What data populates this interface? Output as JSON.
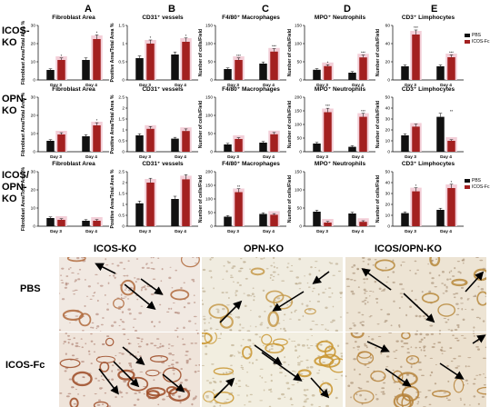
{
  "column_letters": [
    "A",
    "B",
    "C",
    "D",
    "E"
  ],
  "row_labels": [
    [
      "ICOS-",
      "KO"
    ],
    [
      "OPN-",
      "KO"
    ],
    [
      "ICOS/",
      "OPN-",
      "KO"
    ]
  ],
  "legend": [
    {
      "name": "PBS",
      "color": "#111111"
    },
    {
      "name": "ICOS-Fc",
      "color": "#a32020"
    }
  ],
  "micrographs": {
    "columns": [
      "ICOS-KO",
      "OPN-KO",
      "ICOS/OPN-KO"
    ],
    "rows": [
      "PBS",
      "ICOS-Fc"
    ]
  },
  "chart_data": [
    {
      "type": "bar",
      "title": "Fibroblast Area",
      "ylabel": "Fibroblast Area/Total Area %",
      "ylim": [
        0,
        30
      ],
      "yticks": [
        0,
        10,
        20,
        30
      ],
      "categories": [
        "Day 3",
        "Day 4"
      ],
      "series": [
        {
          "name": "PBS",
          "values": [
            5.5,
            11
          ]
        },
        {
          "name": "ICOS-Fc",
          "values": [
            11,
            22.5
          ]
        }
      ],
      "significance": [
        "*",
        "*"
      ]
    },
    {
      "type": "bar",
      "title": "CD31⁺ vessels",
      "ylabel": "Positive Area/Total Area %",
      "ylim": [
        0,
        1.5
      ],
      "yticks": [
        0.0,
        0.5,
        1.0,
        1.5
      ],
      "categories": [
        "Day 3",
        "Day 4"
      ],
      "series": [
        {
          "name": "PBS",
          "values": [
            0.6,
            0.7
          ]
        },
        {
          "name": "ICOS-Fc",
          "values": [
            1.0,
            1.05
          ]
        }
      ],
      "significance": [
        "*",
        "*"
      ]
    },
    {
      "type": "bar",
      "title": "F4/80⁺ Macrophages",
      "ylabel": "Number of cells/Field",
      "ylim": [
        0,
        150
      ],
      "yticks": [
        0,
        50,
        100,
        150
      ],
      "categories": [
        "Day 3",
        "Day 4"
      ],
      "series": [
        {
          "name": "PBS",
          "values": [
            30,
            45
          ]
        },
        {
          "name": "ICOS-Fc",
          "values": [
            55,
            78
          ]
        }
      ],
      "significance": [
        "***",
        "***"
      ]
    },
    {
      "type": "bar",
      "title": "MPO⁺ Neutrophils",
      "ylabel": "Number of cells/Field",
      "ylim": [
        0,
        150
      ],
      "yticks": [
        0,
        50,
        100,
        150
      ],
      "categories": [
        "Day 3",
        "Day 4"
      ],
      "series": [
        {
          "name": "PBS",
          "values": [
            28,
            20
          ]
        },
        {
          "name": "ICOS-Fc",
          "values": [
            38,
            62
          ]
        }
      ],
      "significance": [
        "*",
        "***"
      ]
    },
    {
      "type": "bar",
      "title": "CD3⁺ Limphocytes",
      "ylabel": "Number of cells/Field",
      "ylim": [
        0,
        60
      ],
      "yticks": [
        0,
        20,
        40,
        60
      ],
      "categories": [
        "Day 3",
        "Day 4"
      ],
      "series": [
        {
          "name": "PBS",
          "values": [
            15,
            15
          ]
        },
        {
          "name": "ICOS-Fc",
          "values": [
            50,
            25
          ]
        }
      ],
      "significance": [
        "***",
        "***"
      ]
    },
    {
      "type": "bar",
      "title": "Fibroblast Area",
      "ylabel": "Fibroblast Area/Total Area %",
      "ylim": [
        0,
        30
      ],
      "yticks": [
        0,
        10,
        20,
        30
      ],
      "categories": [
        "Day 3",
        "Day 4"
      ],
      "series": [
        {
          "name": "PBS",
          "values": [
            6,
            8.5
          ]
        },
        {
          "name": "ICOS-Fc",
          "values": [
            9.5,
            14.5
          ]
        }
      ],
      "significance": [
        "",
        "*"
      ]
    },
    {
      "type": "bar",
      "title": "CD31⁺ vessels",
      "ylabel": "Positive Area/Total Area %",
      "ylim": [
        0,
        2.5
      ],
      "yticks": [
        0.0,
        0.5,
        1.0,
        1.5,
        2.0,
        2.5
      ],
      "categories": [
        "Day 3",
        "Day 4"
      ],
      "series": [
        {
          "name": "PBS",
          "values": [
            0.75,
            0.6
          ]
        },
        {
          "name": "ICOS-Fc",
          "values": [
            1.05,
            0.95
          ]
        }
      ],
      "significance": [
        "",
        ""
      ]
    },
    {
      "type": "bar",
      "title": "F4/80⁺ Macrophages",
      "ylabel": "Number of cells/Field",
      "ylim": [
        0,
        150
      ],
      "yticks": [
        0,
        50,
        100,
        150
      ],
      "categories": [
        "Day 3",
        "Day 4"
      ],
      "series": [
        {
          "name": "PBS",
          "values": [
            20,
            25
          ]
        },
        {
          "name": "ICOS-Fc",
          "values": [
            35,
            48
          ]
        }
      ],
      "significance": [
        "",
        ""
      ]
    },
    {
      "type": "bar",
      "title": "MPO⁺ Neutrophils",
      "ylabel": "Number of cells/Field",
      "ylim": [
        0,
        200
      ],
      "yticks": [
        0,
        50,
        100,
        150,
        200
      ],
      "categories": [
        "Day 3",
        "Day 4"
      ],
      "series": [
        {
          "name": "PBS",
          "values": [
            30,
            18
          ]
        },
        {
          "name": "ICOS-Fc",
          "values": [
            145,
            128
          ]
        }
      ],
      "significance": [
        "***",
        "***"
      ]
    },
    {
      "type": "bar",
      "title": "CD3⁺ Limphocytes",
      "ylabel": "Number of cells/Field",
      "ylim": [
        0,
        50
      ],
      "yticks": [
        0,
        10,
        20,
        30,
        40,
        50
      ],
      "categories": [
        "Day 3",
        "Day 4"
      ],
      "series": [
        {
          "name": "PBS",
          "values": [
            15,
            32
          ]
        },
        {
          "name": "ICOS-Fc",
          "values": [
            23,
            10
          ]
        }
      ],
      "significance": [
        "",
        "**"
      ]
    },
    {
      "type": "bar",
      "title": "Fibroblast Area",
      "ylabel": "Fibroblast Area/Total Area %",
      "ylim": [
        0,
        30
      ],
      "yticks": [
        0,
        10,
        20,
        30
      ],
      "categories": [
        "Day 3",
        "Day 4"
      ],
      "series": [
        {
          "name": "PBS",
          "values": [
            4.5,
            3
          ]
        },
        {
          "name": "ICOS-Fc",
          "values": [
            3.5,
            3
          ]
        }
      ],
      "significance": [
        "",
        ""
      ]
    },
    {
      "type": "bar",
      "title": "CD31⁺ vessels",
      "ylabel": "Positive Area/Total Area %",
      "ylim": [
        0,
        2.5
      ],
      "yticks": [
        0.0,
        0.5,
        1.0,
        1.5,
        2.0,
        2.5
      ],
      "categories": [
        "Day 3",
        "Day 4"
      ],
      "series": [
        {
          "name": "PBS",
          "values": [
            1.05,
            1.25
          ]
        },
        {
          "name": "ICOS-Fc",
          "values": [
            2.0,
            2.15
          ]
        }
      ],
      "significance": [
        "",
        ""
      ]
    },
    {
      "type": "bar",
      "title": "F4/80⁺ Macrophages",
      "ylabel": "Number of cells/Field",
      "ylim": [
        0,
        200
      ],
      "yticks": [
        0,
        50,
        100,
        150,
        200
      ],
      "categories": [
        "Day 3",
        "Day 4"
      ],
      "series": [
        {
          "name": "PBS",
          "values": [
            35,
            45
          ]
        },
        {
          "name": "ICOS-Fc",
          "values": [
            125,
            42
          ]
        }
      ],
      "significance": [
        "**",
        ""
      ]
    },
    {
      "type": "bar",
      "title": "MPO⁺ Neutrophils",
      "ylabel": "Number of cells/Field",
      "ylim": [
        0,
        150
      ],
      "yticks": [
        0,
        50,
        100,
        150
      ],
      "categories": [
        "Day 3",
        "Day 4"
      ],
      "series": [
        {
          "name": "PBS",
          "values": [
            40,
            35
          ]
        },
        {
          "name": "ICOS-Fc",
          "values": [
            10,
            12
          ]
        }
      ],
      "significance": [
        "",
        ""
      ]
    },
    {
      "type": "bar",
      "title": "CD3⁺ Limphocytes",
      "ylabel": "Number of cells/Field",
      "ylim": [
        0,
        50
      ],
      "yticks": [
        0,
        10,
        20,
        30,
        40,
        50
      ],
      "categories": [
        "Day 3",
        "Day 4"
      ],
      "series": [
        {
          "name": "PBS",
          "values": [
            12,
            15
          ]
        },
        {
          "name": "ICOS-Fc",
          "values": [
            32,
            35
          ]
        }
      ],
      "significance": [
        "*",
        "*"
      ]
    }
  ]
}
